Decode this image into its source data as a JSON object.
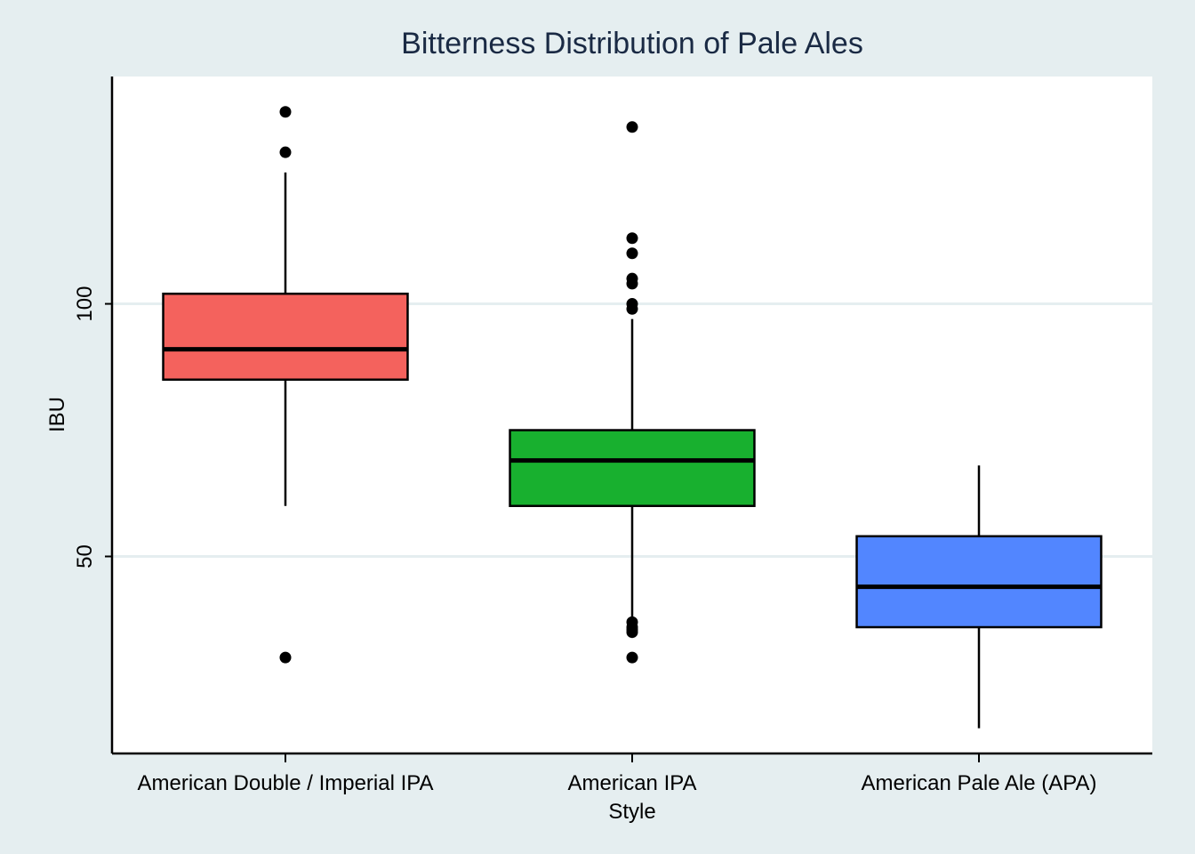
{
  "chart_data": {
    "type": "boxplot",
    "title": "Bitterness Distribution of Pale Ales",
    "xlabel": "Style",
    "ylabel": "IBU",
    "ylim": [
      11,
      145
    ],
    "yticks": [
      50,
      100
    ],
    "grid": true,
    "colors": {
      "background": "#e5eef0",
      "plot_background": "#ffffff",
      "gridline": "#e5eef0"
    },
    "boxes": [
      {
        "category": "American Double / Imperial IPA",
        "color": "#f4625d",
        "whisker_low": 60,
        "q1": 85,
        "median": 91,
        "q3": 102,
        "whisker_high": 126,
        "outliers": [
          30,
          130,
          138
        ]
      },
      {
        "category": "American IPA",
        "color": "#18b02f",
        "whisker_low": 37,
        "q1": 60,
        "median": 69,
        "q3": 75,
        "whisker_high": 97,
        "outliers": [
          30,
          35,
          35.5,
          36,
          37,
          99,
          100,
          104,
          105,
          110,
          113,
          135
        ]
      },
      {
        "category": "American Pale Ale (APA)",
        "color": "#5286ff",
        "whisker_low": 16,
        "q1": 36,
        "median": 44,
        "q3": 54,
        "whisker_high": 68,
        "outliers": []
      }
    ]
  }
}
